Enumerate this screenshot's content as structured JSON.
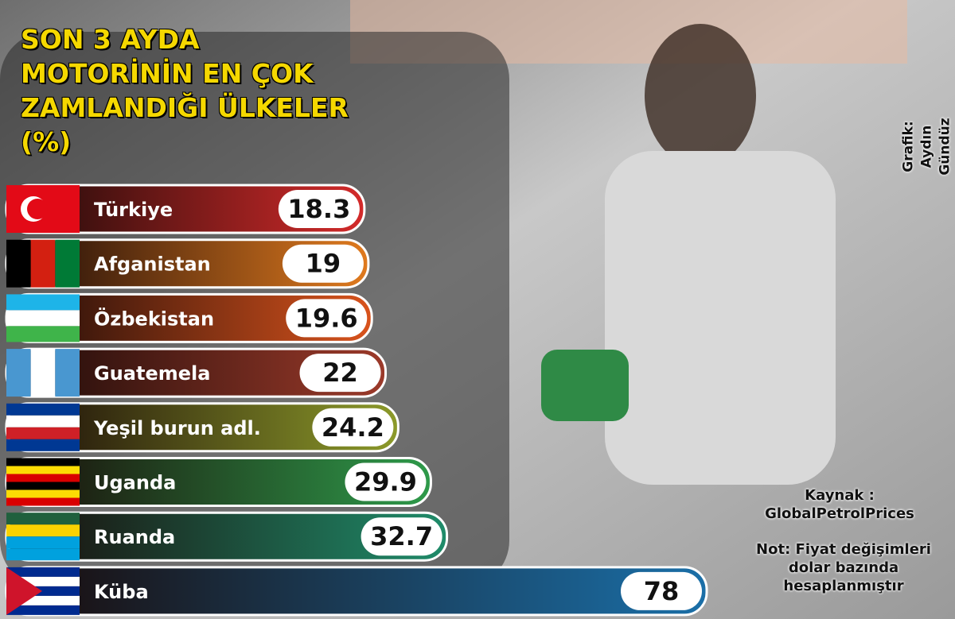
{
  "chart_data": {
    "type": "bar",
    "orientation": "horizontal",
    "title": "SON 3 AYDA MOTORİNİN EN ÇOK ZAMLANDIĞI ÜLKELER (%)",
    "credit": "Grafik: Aydın Gündüz",
    "source": "Kaynak : GlobalPetrolPrices",
    "note": "Not: Fiyat değişimleri dolar bazında hesaplanmıştır",
    "categories": [
      "Türkiye",
      "Afganistan",
      "Özbekistan",
      "Guatemela",
      "Yeşil burun adl.",
      "Uganda",
      "Ruanda",
      "Küba"
    ],
    "values": [
      18.3,
      19,
      19.6,
      22,
      24.2,
      29.9,
      32.7,
      78
    ],
    "colors": [
      "#d42a2a",
      "#e07a1e",
      "#d9531c",
      "#9c3a2a",
      "#8c9a2a",
      "#2e9a4a",
      "#1f8c6a",
      "#1a6fa8"
    ]
  }
}
